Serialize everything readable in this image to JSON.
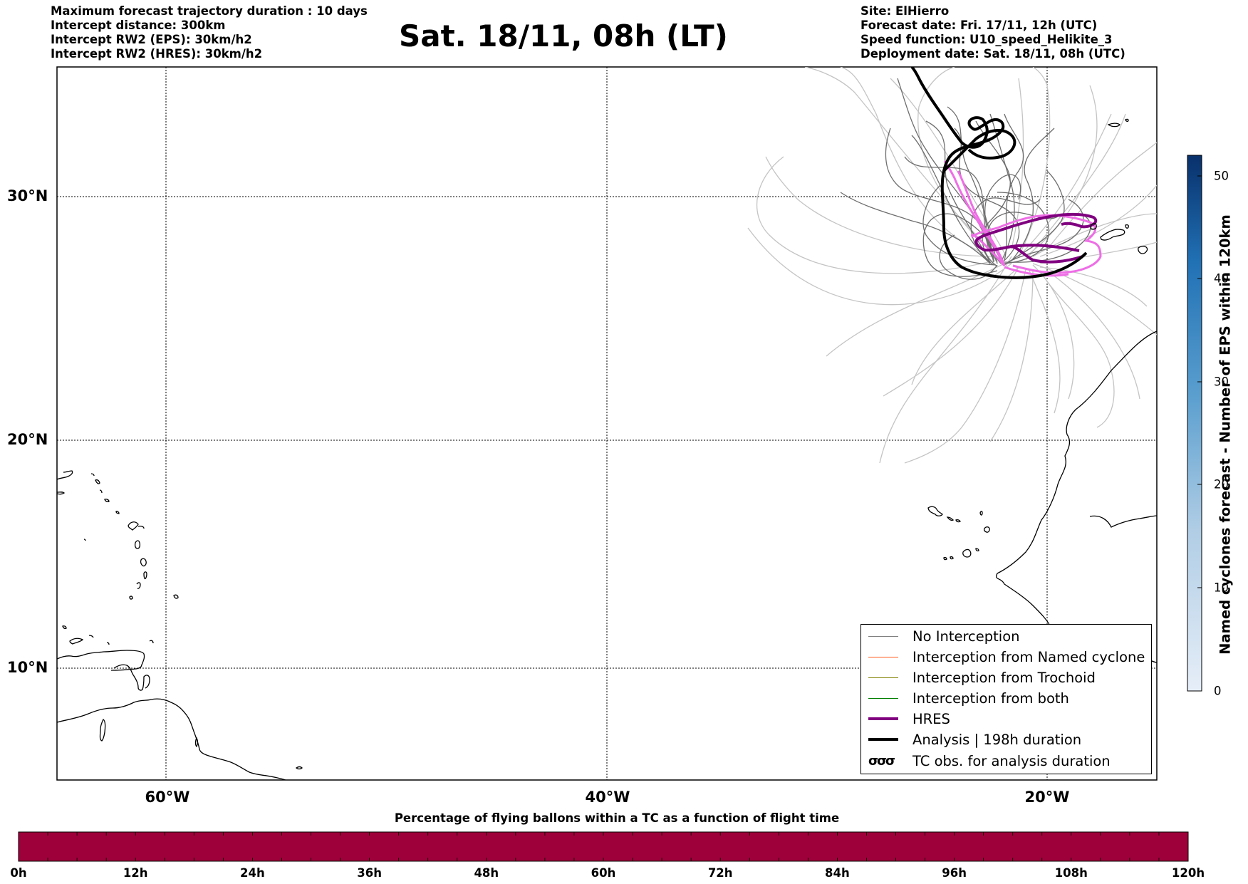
{
  "header": {
    "left": [
      "Maximum forecast trajectory duration : 10 days",
      "Intercept distance: 300km",
      "Intercept RW2 (EPS):  30km/h2",
      "Intercept RW2 (HRES): 30km/h2"
    ],
    "title": "Sat. 18/11, 08h (LT)",
    "right": [
      "Site: ElHierro",
      "Forecast date: Fri. 17/11, 12h (UTC)",
      "Speed function: U10_speed_Helikite_3",
      "Deployment date: Sat. 18/11, 08h (UTC)"
    ]
  },
  "map": {
    "lat_labels": [
      "30°N",
      "20°N",
      "10°N"
    ],
    "lon_labels": [
      "60°W",
      "40°W",
      "20°W"
    ],
    "site": "ElHierro",
    "colors": {
      "eps_dark": "#6e6e6e",
      "eps_light": "#c4c4c4",
      "hres": "#800080",
      "hres_light": "#ee6ee6",
      "analysis": "#000000",
      "coast": "#000000"
    }
  },
  "legend": {
    "items": [
      {
        "label": "No Interception",
        "color": "#808080",
        "kind": "line-thin"
      },
      {
        "label": "Interception from Named cyclone",
        "color": "#ff5a1e",
        "kind": "line-thin"
      },
      {
        "label": "Interception from Trochoid",
        "color": "#808000",
        "kind": "line-thin"
      },
      {
        "label": "Interception from both",
        "color": "#008000",
        "kind": "line-thin"
      },
      {
        "label": "HRES",
        "color": "#800080",
        "kind": "line-thick"
      },
      {
        "label": "Analysis | 198h duration",
        "color": "#000000",
        "kind": "line-thick"
      },
      {
        "label": "TC obs. for analysis duration",
        "color": "#000000",
        "kind": "tc-symbol",
        "symbol": "σσσ"
      }
    ]
  },
  "colorbar_vertical": {
    "label": "Named cyclones forecast - Number of EPS within 120km",
    "ticks": [
      "0",
      "10",
      "20",
      "30",
      "40",
      "50"
    ],
    "range": [
      0,
      52
    ],
    "color_low": "#e6eef8",
    "color_high": "#08306b"
  },
  "colorbar_horizontal": {
    "title": "Percentage of flying ballons within a TC as a function of flight time",
    "ticks": [
      "0h",
      "12h",
      "24h",
      "36h",
      "48h",
      "60h",
      "72h",
      "84h",
      "96h",
      "108h",
      "120h"
    ],
    "fill_color": "#9e003a"
  }
}
